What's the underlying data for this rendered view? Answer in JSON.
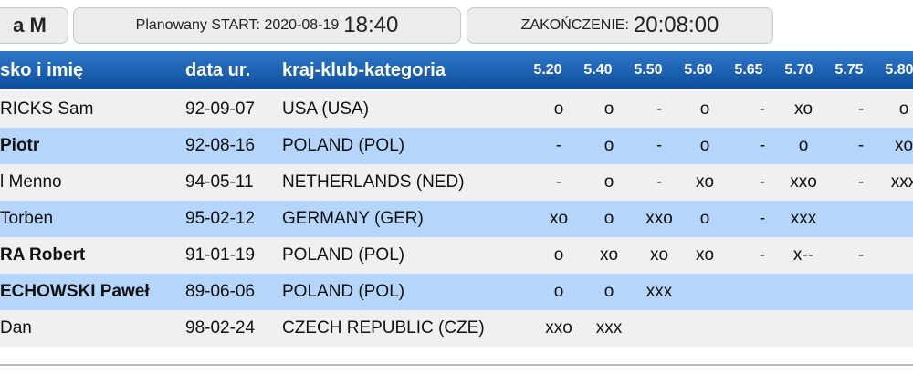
{
  "header": {
    "event": "a M",
    "start_label": "Planowany START: 2020-08-19",
    "start_time": "18:40",
    "end_label": "ZAKOŃCZENIE:",
    "end_time": "20:08:00"
  },
  "table": {
    "columns": [
      "sko i imię",
      "data ur.",
      "kraj-klub-kategoria"
    ],
    "heights": [
      "5.20",
      "5.40",
      "5.50",
      "5.60",
      "5.65",
      "5.70",
      "5.75",
      "5.80"
    ],
    "rows": [
      {
        "name": "RICKS Sam",
        "bold": false,
        "birth": "92-09-07",
        "country": "USA (USA)",
        "results": [
          "o",
          "o",
          "-",
          "o",
          "-",
          "xo",
          "-",
          "o"
        ]
      },
      {
        "name": "Piotr",
        "bold": true,
        "birth": "92-08-16",
        "country": "POLAND (POL)",
        "results": [
          "-",
          "o",
          "-",
          "o",
          "-",
          "o",
          "-",
          "xo"
        ]
      },
      {
        "name": "l Menno",
        "bold": false,
        "birth": "94-05-11",
        "country": "NETHERLANDS (NED)",
        "results": [
          "-",
          "o",
          "-",
          "xo",
          "-",
          "xxo",
          "-",
          "xxx"
        ]
      },
      {
        "name": "Torben",
        "bold": false,
        "birth": "95-02-12",
        "country": "GERMANY (GER)",
        "results": [
          "xo",
          "o",
          "xxo",
          "o",
          "-",
          "xxx"
        ]
      },
      {
        "name": "RA Robert",
        "bold": true,
        "birth": "91-01-19",
        "country": "POLAND (POL)",
        "results": [
          "o",
          "xo",
          "xo",
          "xo",
          "-",
          "x--",
          "-"
        ]
      },
      {
        "name": "ECHOWSKI Paweł",
        "bold": true,
        "birth": "89-06-06",
        "country": "POLAND (POL)",
        "results": [
          "o",
          "o",
          "xxx"
        ]
      },
      {
        "name": "Dan",
        "bold": false,
        "birth": "98-02-24",
        "country": "CZECH REPUBLIC (CZE)",
        "results": [
          "xxo",
          "xxx"
        ]
      }
    ]
  }
}
